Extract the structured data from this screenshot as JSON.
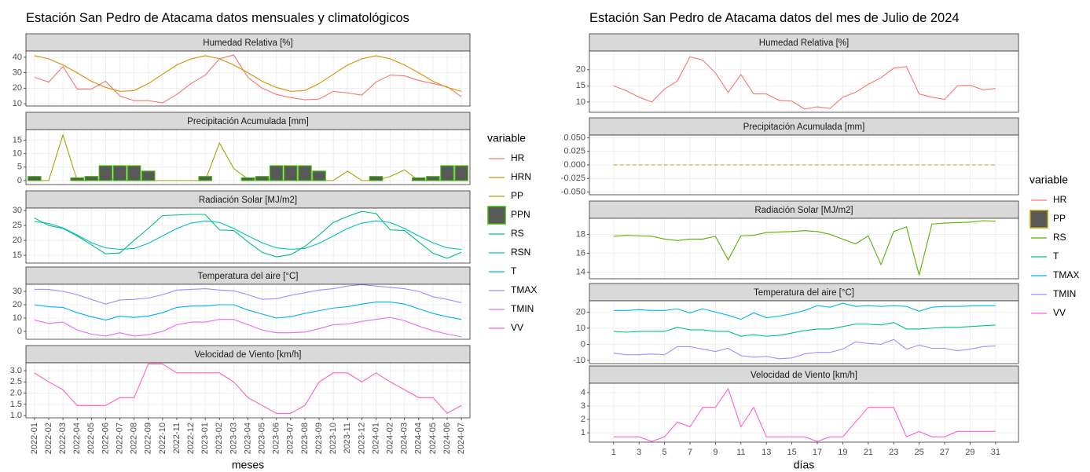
{
  "chart_data": [
    {
      "type": "line",
      "title": "Estación San Pedro de Atacama datos mensuales y climatológicos",
      "x_label": "meses",
      "legend_title": "variable",
      "categories": [
        "2022-01",
        "2022-02",
        "2022-03",
        "2022-04",
        "2022-05",
        "2022-06",
        "2022-07",
        "2022-08",
        "2022-09",
        "2022-10",
        "2022-11",
        "2022-12",
        "2023-01",
        "2023-02",
        "2023-03",
        "2023-04",
        "2023-05",
        "2023-06",
        "2023-07",
        "2023-08",
        "2023-09",
        "2023-10",
        "2023-11",
        "2023-12",
        "2024-01",
        "2024-02",
        "2024-03",
        "2024-04",
        "2024-05",
        "2024-06",
        "2024-07"
      ],
      "grid": true,
      "panels": [
        {
          "title": "Humedad Relativa [%]",
          "ylim": [
            8.5,
            44
          ],
          "yticks": [
            10,
            20,
            30,
            40
          ],
          "series": [
            {
              "name": "HR",
              "color": "#F8766D",
              "values": [
                27,
                24,
                34,
                19.5,
                19.5,
                24.5,
                15,
                12,
                12,
                10.5,
                16,
                23,
                28.5,
                39,
                41.5,
                27,
                20,
                16,
                14,
                12.5,
                13,
                18,
                17,
                15.5,
                24,
                28.5,
                28,
                25,
                23,
                21,
                14.5
              ]
            },
            {
              "name": "HRN",
              "color": "#D89000",
              "values": [
                41,
                39,
                35,
                30,
                24.5,
                20.5,
                18,
                18.5,
                23,
                29,
                35,
                39,
                41,
                39,
                35,
                30,
                24.5,
                20.5,
                18,
                18.5,
                23,
                29,
                35,
                39,
                41,
                39,
                35,
                30,
                24.5,
                20.5,
                18
              ]
            }
          ]
        },
        {
          "title": "Precipitación Acumulada [mm]",
          "ylim": [
            -1.5,
            19
          ],
          "yticks": [
            0,
            5,
            10,
            15
          ],
          "series": [
            {
              "name": "PP",
              "color": "#A3A500",
              "values": [
                0,
                0,
                17,
                0,
                0,
                1,
                0,
                0,
                0,
                0,
                0,
                0,
                0,
                14,
                4.5,
                0.5,
                1,
                0,
                0,
                0,
                0,
                0,
                3.5,
                0,
                0,
                1.5,
                4,
                0,
                0,
                0,
                0
              ]
            },
            {
              "name": "PPN",
              "type": "bar",
              "color": "#39B600",
              "fill": "#595959",
              "values": [
                1.5,
                0,
                0,
                1,
                1.5,
                5.5,
                5.5,
                5.5,
                3.5,
                0,
                0,
                0,
                1.5,
                0,
                0,
                1,
                1.5,
                5.5,
                5.5,
                5.5,
                3.5,
                0,
                0,
                0,
                1.5,
                0,
                0,
                1,
                1.5,
                5.5,
                5.5
              ]
            }
          ]
        },
        {
          "title": "Radiación Solar [MJ/m2]",
          "ylim": [
            12.4,
            30.8
          ],
          "yticks": [
            15,
            20,
            25,
            30
          ],
          "series": [
            {
              "name": "RS",
              "color": "#00BF7D",
              "values": [
                27.5,
                25,
                24,
                21.5,
                18.5,
                15.5,
                15.8,
                20,
                24,
                28.3,
                28.5,
                28.7,
                28.7,
                23.5,
                23.3,
                19.5,
                16,
                14.5,
                15.2,
                18,
                21.8,
                26,
                28,
                29.7,
                29,
                23.5,
                23.3,
                19.5,
                15.7,
                14,
                16
              ]
            },
            {
              "name": "RSN",
              "color": "#00BFC4",
              "values": [
                26.3,
                25.7,
                24.2,
                21.8,
                19.2,
                17.5,
                17,
                17.3,
                19,
                21.5,
                24,
                25.8,
                26.5,
                26,
                24,
                21.5,
                19.2,
                17.5,
                17,
                17.3,
                19,
                21.5,
                24,
                25.8,
                26.5,
                26,
                24,
                21.5,
                19.2,
                17.5,
                17
              ]
            }
          ]
        },
        {
          "title": "Temperatura del aire [°C]",
          "ylim": [
            -5.9,
            35.3
          ],
          "yticks": [
            0,
            10,
            20,
            30
          ],
          "series": [
            {
              "name": "T",
              "color": "#00B0F6",
              "values": [
                20,
                18.5,
                18,
                14,
                11,
                8.5,
                11.5,
                10.5,
                11.5,
                14,
                18,
                19,
                19,
                20,
                20,
                16,
                13,
                10,
                11,
                13.5,
                15.5,
                17.5,
                18.5,
                20.5,
                22,
                22,
                20.5,
                17,
                13.5,
                11,
                9
              ]
            },
            {
              "name": "TMAX",
              "color": "#9590FF",
              "values": [
                31.5,
                31.5,
                30,
                27.5,
                24,
                20.5,
                23.5,
                24,
                25,
                27.5,
                31,
                31.5,
                32,
                31,
                30.5,
                27.5,
                24,
                24.5,
                27,
                29,
                31,
                32,
                34,
                35,
                34,
                33,
                32,
                30,
                26,
                24,
                21.5
              ]
            },
            {
              "name": "TMIN",
              "color": "#E76BF3",
              "values": [
                8.5,
                6,
                7,
                1,
                -2,
                -3.5,
                -1,
                -3.5,
                -2.5,
                0,
                5,
                7,
                7,
                9,
                9,
                5,
                1,
                -1,
                -1,
                -0.5,
                2,
                5,
                5.5,
                7.5,
                9,
                10.5,
                8,
                4,
                0.5,
                -2,
                -4
              ]
            }
          ]
        },
        {
          "title": "Velocidad de Viento [km/h]",
          "ylim": [
            0.9,
            3.35
          ],
          "yticks": [
            {
              "value": 1,
              "label": "1.0"
            },
            1.5,
            {
              "value": 2,
              "label": "2.0"
            },
            2.5,
            {
              "value": 3,
              "label": "3.0"
            }
          ],
          "series": [
            {
              "name": "VV",
              "color": "#FF62BC",
              "values": [
                2.9,
                2.5,
                2.15,
                1.45,
                1.45,
                1.45,
                1.8,
                1.8,
                3.3,
                3.3,
                2.9,
                2.9,
                2.9,
                2.9,
                2.5,
                1.8,
                1.45,
                1.1,
                1.1,
                1.45,
                2.5,
                2.9,
                2.9,
                2.5,
                2.9,
                2.5,
                2.15,
                1.8,
                1.8,
                1.1,
                1.45
              ]
            }
          ]
        }
      ]
    },
    {
      "type": "line",
      "title": "Estación San Pedro de Atacama datos del mes de Julio de 2024",
      "x_label": "días",
      "legend_title": "variable",
      "x": [
        1,
        2,
        3,
        4,
        5,
        6,
        7,
        8,
        9,
        10,
        11,
        12,
        13,
        14,
        15,
        16,
        17,
        18,
        19,
        20,
        21,
        22,
        23,
        24,
        25,
        26,
        27,
        28,
        29,
        30,
        31
      ],
      "xlim": [
        -0.9,
        32.8
      ],
      "xticks": [
        1,
        3,
        5,
        7,
        9,
        11,
        13,
        15,
        17,
        19,
        21,
        23,
        25,
        27,
        29,
        31
      ],
      "grid": true,
      "panels": [
        {
          "title": "Humedad Relativa [%]",
          "ylim": [
            6.8,
            25.8
          ],
          "yticks": [
            10,
            15,
            20
          ],
          "series": [
            {
              "name": "HR",
              "color": "#F8766D",
              "values": [
                15,
                13.5,
                11.5,
                10,
                14,
                16.5,
                24,
                23,
                19,
                13,
                18.5,
                12.5,
                12.5,
                10.5,
                10.3,
                7.8,
                8.5,
                8,
                11.5,
                13,
                15.5,
                17.5,
                20.5,
                21,
                12.5,
                11.5,
                10.8,
                15,
                15.2,
                13.8,
                14.2
              ]
            }
          ]
        },
        {
          "title": "Precipitación Acumulada [mm]",
          "ylim": [
            -0.055,
            0.055
          ],
          "yticks": [
            {
              "value": -0.05,
              "label": "-0.050"
            },
            {
              "value": -0.025,
              "label": "-0.025"
            },
            {
              "value": 0,
              "label": "0.000"
            },
            {
              "value": 0.025,
              "label": "0.025"
            },
            {
              "value": 0.05,
              "label": "0.050"
            }
          ],
          "series": [
            {
              "name": "PP",
              "color": "#C49A00",
              "dash": true,
              "legend_key": "box",
              "values": [
                0,
                0,
                0,
                0,
                0,
                0,
                0,
                0,
                0,
                0,
                0,
                0,
                0,
                0,
                0,
                0,
                0,
                0,
                0,
                0,
                0,
                0,
                0,
                0,
                0,
                0,
                0,
                0,
                0,
                0,
                0
              ]
            }
          ]
        },
        {
          "title": "Radiación Solar [MJ/m2]",
          "ylim": [
            13.3,
            19.7
          ],
          "yticks": [
            14,
            16,
            18
          ],
          "series": [
            {
              "name": "RS",
              "color": "#53B400",
              "values": [
                17.8,
                17.9,
                17.85,
                17.8,
                17.5,
                17.35,
                17.5,
                17.5,
                17.8,
                15.3,
                17.85,
                17.9,
                18.2,
                18.25,
                18.3,
                18.4,
                18.3,
                18,
                17.5,
                17,
                17.85,
                14.8,
                18.3,
                18.8,
                13.7,
                19.1,
                19.2,
                19.25,
                19.3,
                19.45,
                19.4
              ]
            }
          ]
        },
        {
          "title": "Temperatura del aire [°C]",
          "ylim": [
            -12,
            27
          ],
          "yticks": [
            -10,
            0,
            10,
            20
          ],
          "series": [
            {
              "name": "T",
              "color": "#00C094",
              "values": [
                8,
                7.5,
                8,
                8,
                8,
                10.5,
                9,
                9,
                8,
                8,
                5,
                6,
                5,
                5.5,
                7,
                8.5,
                9.5,
                9.5,
                11,
                12.5,
                12.5,
                12,
                13.5,
                9.5,
                9.5,
                10,
                10.5,
                10.5,
                11,
                11.5,
                12
              ]
            },
            {
              "name": "TMAX",
              "color": "#00B6EB",
              "values": [
                21,
                21,
                21.5,
                21,
                21,
                22,
                19.5,
                22,
                20,
                18,
                15.5,
                19.5,
                16.5,
                17.5,
                19,
                21,
                24,
                23,
                25.5,
                23.5,
                24,
                23.5,
                24,
                23.5,
                20.5,
                23,
                23.5,
                23.5,
                23.8,
                24,
                24
              ]
            },
            {
              "name": "TMIN",
              "color": "#A58AFF",
              "values": [
                -5.5,
                -6.5,
                -6.5,
                -6,
                -6.5,
                -1.5,
                -1.5,
                -3,
                -4.5,
                -2.5,
                -7,
                -8,
                -7.5,
                -9,
                -8.5,
                -6,
                -5,
                -5,
                -3,
                1.5,
                0.5,
                0,
                3,
                -3,
                -0.5,
                -2.5,
                -2.5,
                -4,
                -3,
                -1.5,
                -1
              ]
            }
          ]
        },
        {
          "title": "Velocidad de Viento [km/h]",
          "ylim": [
            0.3,
            4.7
          ],
          "yticks": [
            1,
            2,
            3,
            4
          ],
          "series": [
            {
              "name": "VV",
              "color": "#FB61D7",
              "values": [
                0.7,
                0.7,
                0.7,
                0.35,
                0.7,
                1.8,
                1.45,
                2.9,
                2.9,
                4.3,
                1.45,
                2.9,
                0.7,
                0.7,
                0.7,
                0.7,
                0.35,
                0.7,
                0.7,
                1.8,
                2.9,
                2.9,
                2.9,
                0.7,
                1.1,
                0.7,
                0.7,
                1.1,
                1.1,
                1.1,
                1.1
              ]
            }
          ]
        }
      ]
    }
  ]
}
